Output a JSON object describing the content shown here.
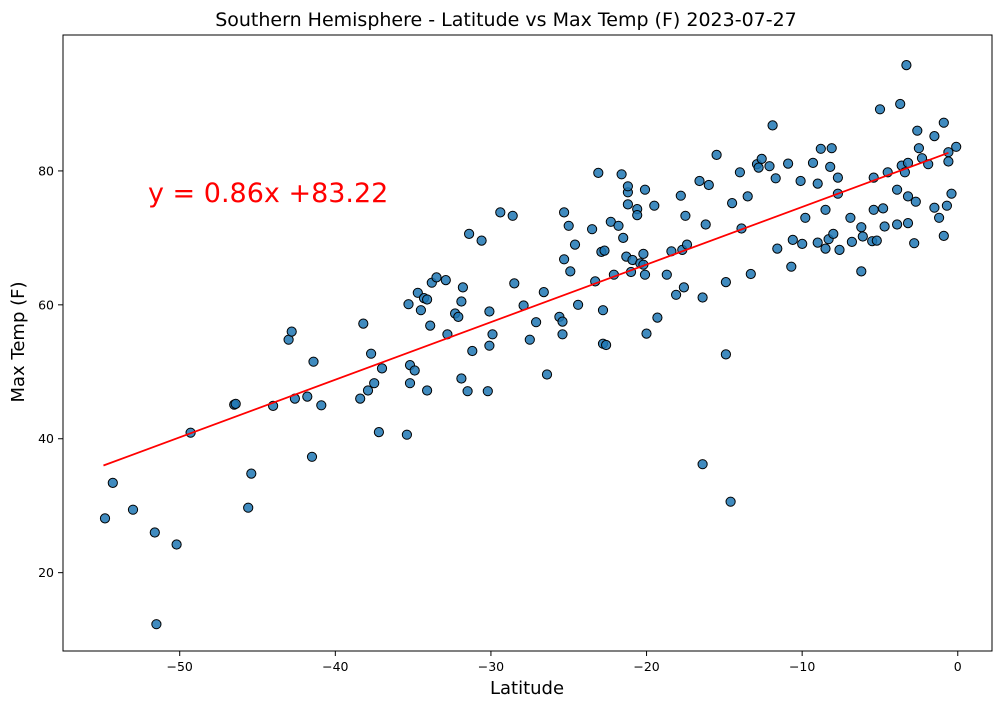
{
  "chart_data": {
    "type": "scatter",
    "title": "Southern Hemisphere - Latitude vs Max Temp (F) 2023-07-27",
    "xlabel": "Latitude",
    "ylabel": "Max Temp (F)",
    "xlim": [
      -57.5,
      2.2
    ],
    "ylim": [
      8.3,
      100.3
    ],
    "xticks": [
      -50,
      -40,
      -30,
      -20,
      -10,
      0
    ],
    "xtick_labels": [
      "−50",
      "−40",
      "−30",
      "−20",
      "−10",
      "0"
    ],
    "yticks": [
      20,
      40,
      60,
      80
    ],
    "ytick_labels": [
      "20",
      "40",
      "60",
      "80"
    ],
    "grid": false,
    "annotation": "y = 0.86x +83.22",
    "regression": {
      "slope": 0.86,
      "intercept": 83.22,
      "x_range": [
        -54.9,
        -0.6
      ]
    },
    "colors": {
      "point": "#1f77b4",
      "point_edge": "#000000",
      "line": "#ff0000"
    },
    "points": [
      [
        -54.8,
        28.1
      ],
      [
        -54.3,
        33.4
      ],
      [
        -53.0,
        29.4
      ],
      [
        -51.6,
        26.0
      ],
      [
        -51.5,
        12.3
      ],
      [
        -50.2,
        24.2
      ],
      [
        -49.3,
        40.9
      ],
      [
        -46.5,
        45.1
      ],
      [
        -46.4,
        45.2
      ],
      [
        -45.6,
        29.7
      ],
      [
        -45.4,
        34.8
      ],
      [
        -44.0,
        44.9
      ],
      [
        -43.0,
        54.8
      ],
      [
        -42.8,
        56.0
      ],
      [
        -42.6,
        46.0
      ],
      [
        -41.8,
        46.3
      ],
      [
        -41.5,
        37.3
      ],
      [
        -41.4,
        51.5
      ],
      [
        -40.9,
        45.0
      ],
      [
        -38.4,
        46.0
      ],
      [
        -38.2,
        57.2
      ],
      [
        -37.9,
        47.2
      ],
      [
        -37.7,
        52.7
      ],
      [
        -37.5,
        48.3
      ],
      [
        -37.2,
        41.0
      ],
      [
        -37.0,
        50.5
      ],
      [
        -35.4,
        40.6
      ],
      [
        -35.3,
        60.1
      ],
      [
        -35.2,
        48.3
      ],
      [
        -35.2,
        51.0
      ],
      [
        -34.9,
        50.2
      ],
      [
        -34.7,
        61.8
      ],
      [
        -34.5,
        59.2
      ],
      [
        -34.3,
        61.0
      ],
      [
        -34.1,
        60.8
      ],
      [
        -34.1,
        47.2
      ],
      [
        -33.9,
        56.9
      ],
      [
        -33.8,
        63.3
      ],
      [
        -33.5,
        64.1
      ],
      [
        -32.9,
        63.7
      ],
      [
        -32.8,
        55.6
      ],
      [
        -32.3,
        58.7
      ],
      [
        -32.1,
        58.2
      ],
      [
        -31.9,
        60.5
      ],
      [
        -31.9,
        49.0
      ],
      [
        -31.8,
        62.6
      ],
      [
        -31.5,
        47.1
      ],
      [
        -31.4,
        70.6
      ],
      [
        -31.2,
        53.1
      ],
      [
        -30.6,
        69.6
      ],
      [
        -30.2,
        47.1
      ],
      [
        -30.1,
        53.9
      ],
      [
        -30.1,
        59.0
      ],
      [
        -29.9,
        55.6
      ],
      [
        -29.4,
        73.8
      ],
      [
        -28.6,
        73.3
      ],
      [
        -28.5,
        63.2
      ],
      [
        -27.9,
        59.9
      ],
      [
        -27.5,
        54.8
      ],
      [
        -27.1,
        57.4
      ],
      [
        -26.6,
        61.9
      ],
      [
        -26.4,
        49.6
      ],
      [
        -25.6,
        58.2
      ],
      [
        -25.4,
        57.5
      ],
      [
        -25.4,
        55.6
      ],
      [
        -25.3,
        73.8
      ],
      [
        -25.3,
        66.8
      ],
      [
        -25.0,
        71.8
      ],
      [
        -24.9,
        65.0
      ],
      [
        -24.6,
        69.0
      ],
      [
        -24.4,
        60.0
      ],
      [
        -23.5,
        71.3
      ],
      [
        -23.3,
        63.5
      ],
      [
        -23.1,
        79.7
      ],
      [
        -22.9,
        67.9
      ],
      [
        -22.8,
        54.2
      ],
      [
        -22.6,
        54.0
      ],
      [
        -22.8,
        59.2
      ],
      [
        -22.7,
        68.1
      ],
      [
        -22.3,
        72.4
      ],
      [
        -22.1,
        64.5
      ],
      [
        -21.8,
        71.8
      ],
      [
        -21.6,
        79.5
      ],
      [
        -21.5,
        70.0
      ],
      [
        -21.3,
        67.2
      ],
      [
        -21.2,
        75.0
      ],
      [
        -21.2,
        76.8
      ],
      [
        -21.2,
        77.7
      ],
      [
        -21.0,
        64.9
      ],
      [
        -20.9,
        66.7
      ],
      [
        -20.6,
        74.3
      ],
      [
        -20.6,
        73.4
      ],
      [
        -20.4,
        66.2
      ],
      [
        -20.2,
        66.0
      ],
      [
        -20.2,
        67.6
      ],
      [
        -20.1,
        64.5
      ],
      [
        -20.1,
        77.2
      ],
      [
        -20.0,
        55.7
      ],
      [
        -19.5,
        74.8
      ],
      [
        -19.3,
        58.1
      ],
      [
        -18.7,
        64.5
      ],
      [
        -18.4,
        68.0
      ],
      [
        -18.1,
        61.5
      ],
      [
        -17.8,
        76.3
      ],
      [
        -17.7,
        68.2
      ],
      [
        -17.6,
        62.6
      ],
      [
        -17.5,
        73.3
      ],
      [
        -17.4,
        69.0
      ],
      [
        -16.6,
        78.5
      ],
      [
        -16.4,
        36.2
      ],
      [
        -16.4,
        61.1
      ],
      [
        -16.2,
        72.0
      ],
      [
        -16.0,
        77.9
      ],
      [
        -15.5,
        82.4
      ],
      [
        -14.9,
        52.6
      ],
      [
        -14.9,
        63.4
      ],
      [
        -14.6,
        30.6
      ],
      [
        -14.5,
        75.2
      ],
      [
        -14.0,
        79.8
      ],
      [
        -13.9,
        71.4
      ],
      [
        -13.5,
        76.2
      ],
      [
        -13.3,
        64.6
      ],
      [
        -12.9,
        81.0
      ],
      [
        -12.8,
        80.5
      ],
      [
        -12.6,
        81.8
      ],
      [
        -12.1,
        80.7
      ],
      [
        -11.9,
        86.8
      ],
      [
        -11.7,
        78.9
      ],
      [
        -11.6,
        68.4
      ],
      [
        -10.9,
        81.1
      ],
      [
        -10.7,
        65.7
      ],
      [
        -10.6,
        69.7
      ],
      [
        -10.1,
        78.5
      ],
      [
        -10.0,
        69.1
      ],
      [
        -9.8,
        73.0
      ],
      [
        -9.3,
        81.2
      ],
      [
        -9.0,
        69.3
      ],
      [
        -9.0,
        78.1
      ],
      [
        -8.8,
        83.3
      ],
      [
        -8.5,
        68.4
      ],
      [
        -8.5,
        74.2
      ],
      [
        -8.3,
        69.8
      ],
      [
        -8.2,
        80.6
      ],
      [
        -8.1,
        83.4
      ],
      [
        -8.0,
        70.6
      ],
      [
        -7.7,
        79.0
      ],
      [
        -7.6,
        68.2
      ],
      [
        -7.7,
        76.6
      ],
      [
        -6.9,
        73.0
      ],
      [
        -6.8,
        69.4
      ],
      [
        -6.2,
        71.6
      ],
      [
        -6.2,
        65.0
      ],
      [
        -6.1,
        70.2
      ],
      [
        -5.5,
        69.5
      ],
      [
        -5.4,
        79.0
      ],
      [
        -5.4,
        74.2
      ],
      [
        -5.2,
        69.6
      ],
      [
        -5.0,
        89.2
      ],
      [
        -4.8,
        74.4
      ],
      [
        -4.7,
        71.7
      ],
      [
        -4.5,
        79.8
      ],
      [
        -3.9,
        77.2
      ],
      [
        -3.9,
        72.0
      ],
      [
        -3.7,
        90.0
      ],
      [
        -3.6,
        80.8
      ],
      [
        -3.4,
        79.8
      ],
      [
        -3.3,
        95.8
      ],
      [
        -3.2,
        81.2
      ],
      [
        -3.2,
        76.2
      ],
      [
        -3.2,
        72.2
      ],
      [
        -2.8,
        69.2
      ],
      [
        -2.7,
        75.4
      ],
      [
        -2.6,
        86.0
      ],
      [
        -2.5,
        83.4
      ],
      [
        -2.3,
        81.9
      ],
      [
        -1.9,
        81.0
      ],
      [
        -1.5,
        85.2
      ],
      [
        -1.5,
        74.5
      ],
      [
        -1.2,
        73.0
      ],
      [
        -0.9,
        87.2
      ],
      [
        -0.9,
        70.3
      ],
      [
        -0.7,
        74.8
      ],
      [
        -0.6,
        82.8
      ],
      [
        -0.6,
        81.4
      ],
      [
        -0.4,
        76.6
      ],
      [
        -0.1,
        83.6
      ]
    ]
  }
}
